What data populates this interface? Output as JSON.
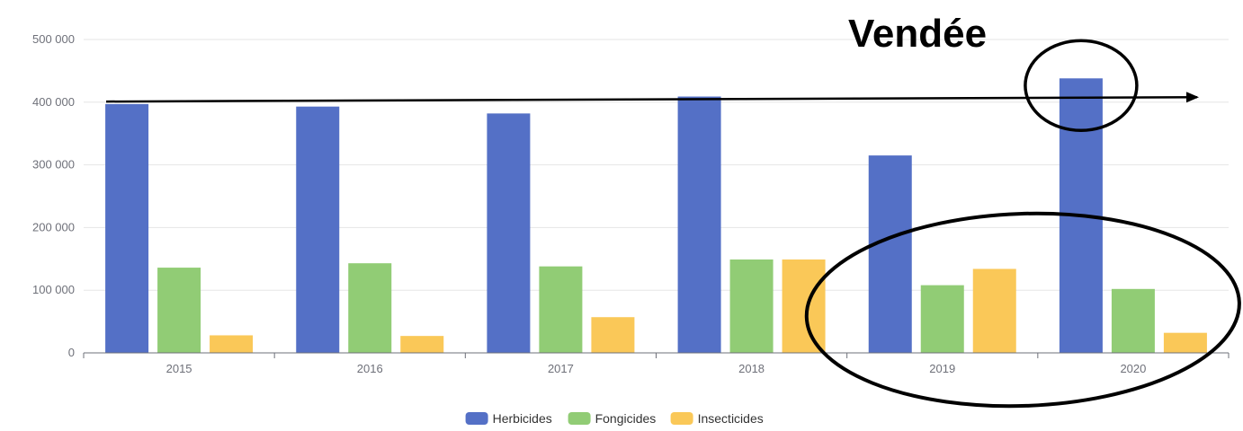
{
  "chart_data": {
    "type": "bar",
    "title": "Vendée",
    "categories": [
      "2015",
      "2016",
      "2017",
      "2018",
      "2019",
      "2020"
    ],
    "series": [
      {
        "name": "Herbicides",
        "color": "#5470c6",
        "values": [
          397000,
          393000,
          382000,
          409000,
          315000,
          438000
        ]
      },
      {
        "name": "Fongicides",
        "color": "#91cc75",
        "values": [
          136000,
          143000,
          138000,
          149000,
          108000,
          102000
        ]
      },
      {
        "name": "Insecticides",
        "color": "#fac858",
        "values": [
          28000,
          27000,
          57000,
          149000,
          134000,
          32000
        ]
      }
    ],
    "ylim": [
      0,
      500000
    ],
    "yticks": [
      0,
      100000,
      200000,
      300000,
      400000,
      500000
    ],
    "ytick_labels": [
      "0",
      "100 000",
      "200 000",
      "300 000",
      "400 000",
      "500 000"
    ],
    "grid": true,
    "legend_position": "bottom-center",
    "annotations": {
      "trend_arrow": {
        "from_category": "2015",
        "from_value": 401000,
        "to_value": 408000,
        "color": "#000000"
      },
      "circle_highlight": {
        "category": "2020",
        "series": "Herbicides"
      },
      "ellipse_highlight": {
        "categories": [
          "2019",
          "2020"
        ]
      }
    }
  }
}
